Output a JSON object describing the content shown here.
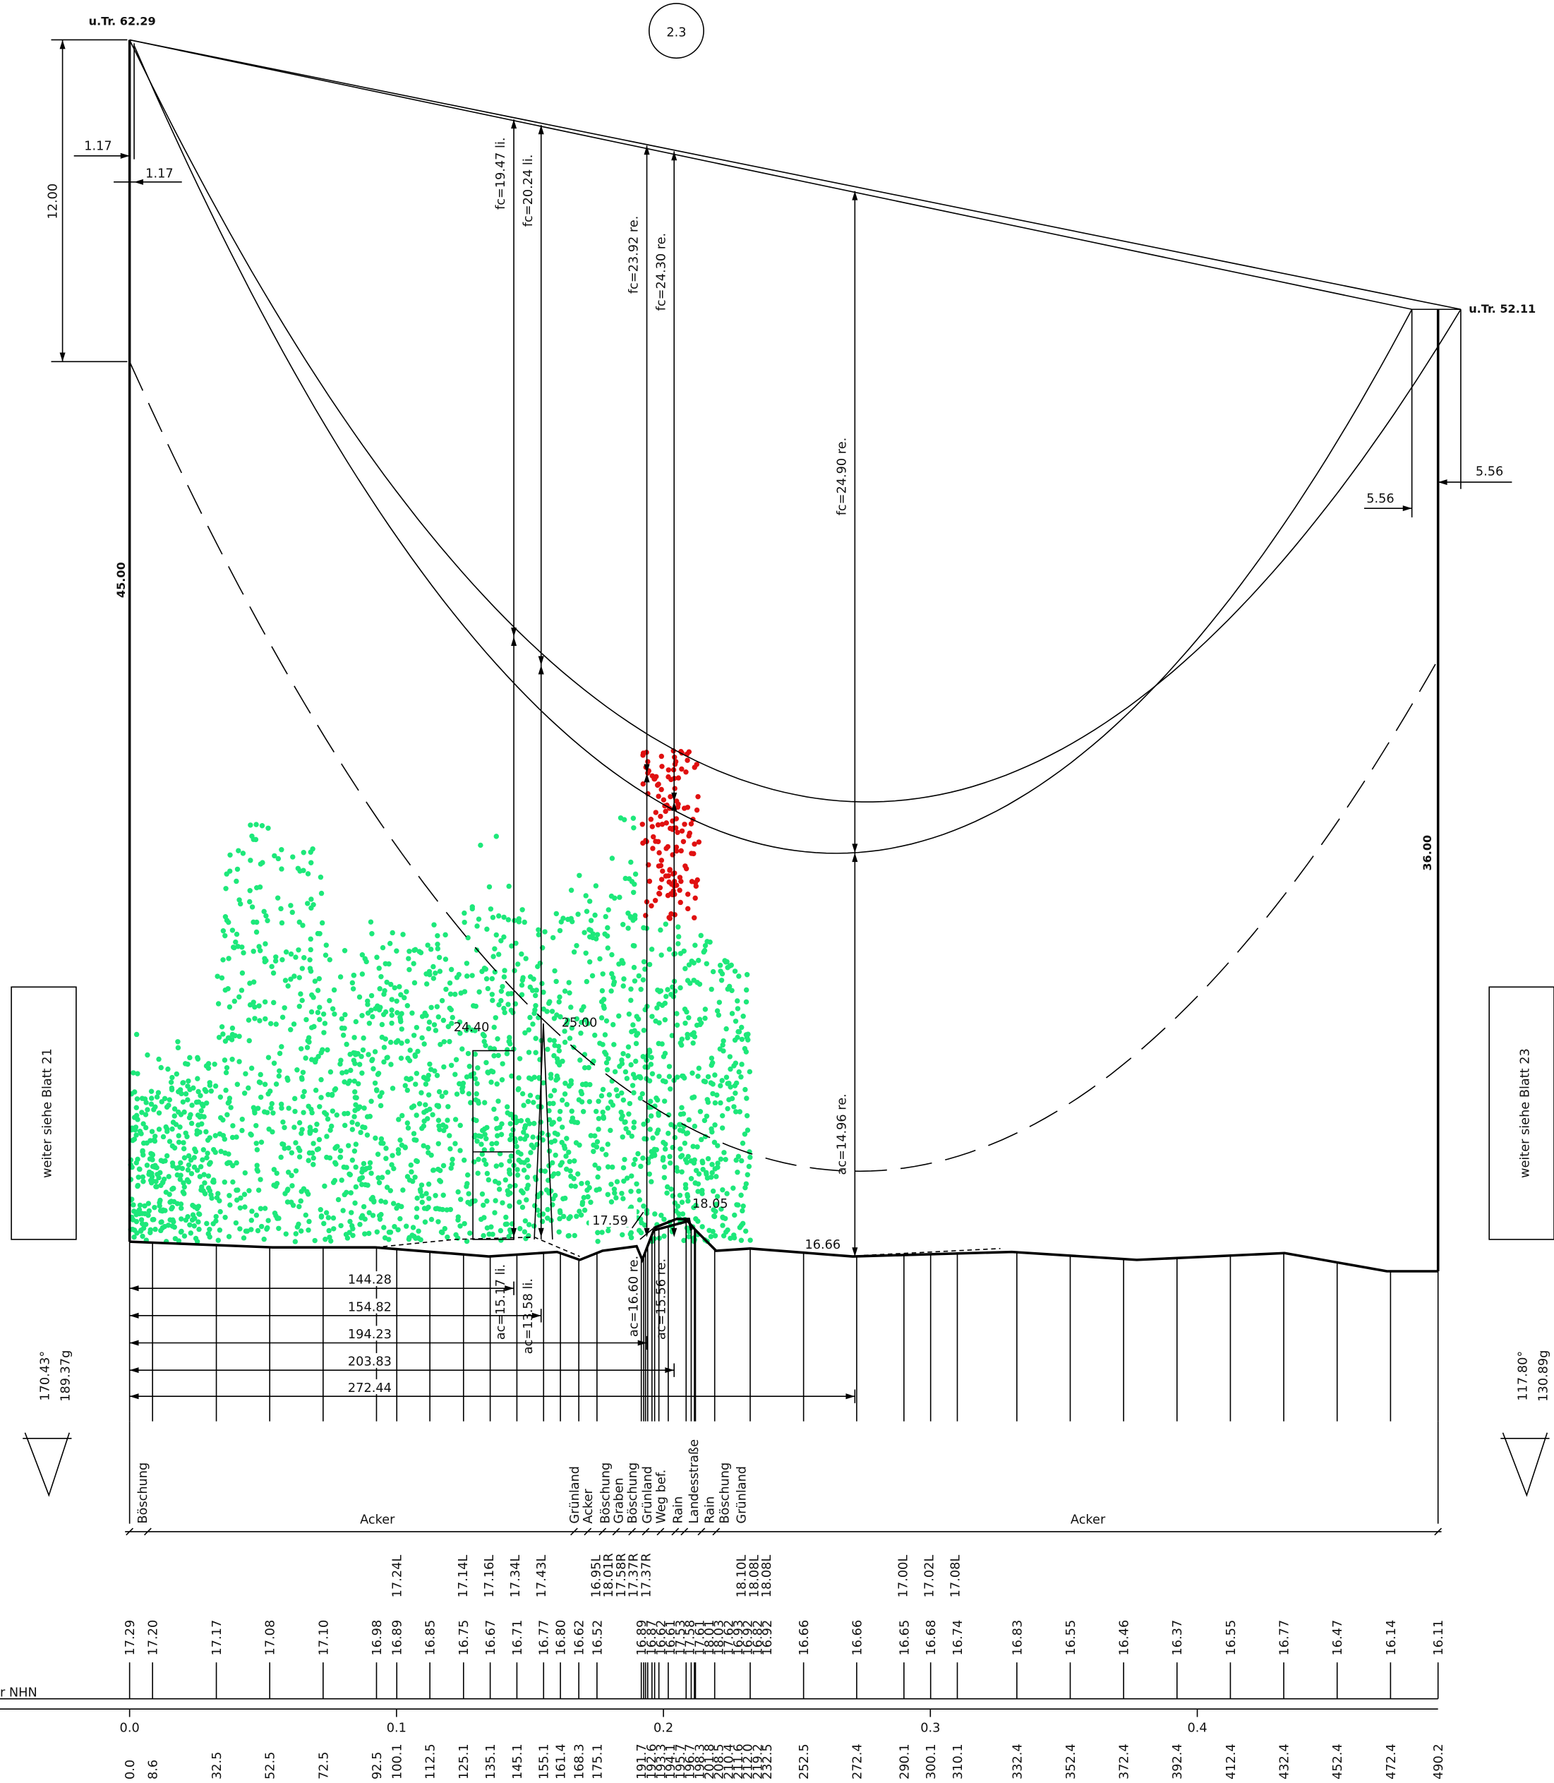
{
  "header": {
    "sheet": "2.3"
  },
  "towers": [
    {
      "label": "u.Tr. 62.29",
      "height": "45.00",
      "angle_deg": "170.43°",
      "angle_gon": "189.37g",
      "continuation": "weiter siehe Blatt 21"
    },
    {
      "label": "u.Tr. 52.11",
      "height": "36.00",
      "angle_deg": "117.80°",
      "angle_gon": "130.89g",
      "continuation": "weiter siehe Blatt 23"
    }
  ],
  "dimensions": {
    "top_offset": "12.00",
    "crossarm_left": [
      "1.17",
      "1.17"
    ],
    "crossarm_right": [
      "5.56",
      "5.56"
    ]
  },
  "sags": [
    "fc=19.47 li.",
    "fc=20.24 li.",
    "fc=23.92 re.",
    "fc=24.30 re.",
    "fc=24.90 re.",
    "ac=15.17 li.",
    "ac=13.58 li.",
    "ac=16.60 re.",
    "ac=15.56 re.",
    "ac=14.96 re."
  ],
  "objects": [
    "24.40",
    "25.00",
    "17.59",
    "18.05",
    "16.66"
  ],
  "distances": [
    "144.28",
    "154.82",
    "194.23",
    "203.83",
    "272.44"
  ],
  "profile": {
    "height_label": "r NHN",
    "km_ticks": [
      "0.0",
      "0.1",
      "0.2",
      "0.3",
      "0.4"
    ],
    "stations": [
      "0.0",
      "8.6",
      "32.5",
      "52.5",
      "72.5",
      "92.5",
      "100.1",
      "112.5",
      "125.1",
      "135.1",
      "145.1",
      "155.1",
      "161.4",
      "168.3",
      "175.1",
      "191.7",
      "192.6",
      "193.3",
      "194.1",
      "195.7",
      "196.7",
      "198.3",
      "201.8",
      "208.5",
      "210.4",
      "211.6",
      "212.0",
      "219.2",
      "232.5",
      "252.5",
      "272.4",
      "290.1",
      "300.1",
      "310.1",
      "332.4",
      "352.4",
      "372.4",
      "392.4",
      "412.4",
      "432.4",
      "452.4",
      "472.4",
      "490.2"
    ],
    "elevations": [
      "17.29",
      "17.20",
      "17.17",
      "17.08",
      "17.10",
      "16.98",
      "16.89",
      "16.85",
      "16.75",
      "16.67",
      "16.71",
      "16.77",
      "16.80",
      "16.62",
      "16.52",
      "16.89",
      "16.87",
      "16.62",
      "16.61",
      "17.53",
      "17.58",
      "17.61",
      "18.01",
      "18.03",
      "17.62",
      "16.93",
      "16.92",
      "16.82",
      "16.92",
      "16.66",
      "16.66",
      "16.65",
      "16.68",
      "16.74",
      "16.83",
      "16.55",
      "16.46",
      "16.37",
      "16.55",
      "16.77",
      "16.47",
      "16.14",
      "16.11"
    ],
    "crossings": [
      "17.24L",
      "17.14L",
      "17.16L",
      "17.34L",
      "17.43L",
      "16.95L",
      "18.01R",
      "17.58R",
      "17.37R",
      "17.37R",
      "18.10L",
      "18.08L",
      "18.08L",
      "17.00L",
      "17.02L",
      "17.08L"
    ],
    "land_use": [
      "Böschung",
      "Acker",
      "Grünland",
      "Acker",
      "Böschung",
      "Graben",
      "Böschung",
      "Grünland",
      "Weg bef.",
      "Rain",
      "Landesstraße",
      "Rain",
      "Böschung",
      "Grünland",
      "Acker"
    ]
  }
}
